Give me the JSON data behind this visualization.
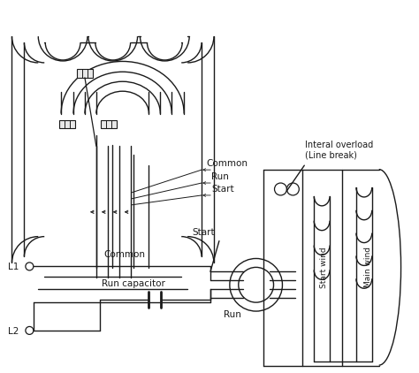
{
  "bg_color": "#ffffff",
  "line_color": "#1a1a1a",
  "fig_width": 4.74,
  "fig_height": 4.22,
  "dpi": 100,
  "labels": {
    "common": "Common",
    "run": "Run",
    "start": "Start",
    "l1": "L1",
    "l2": "L2",
    "run_cap": "Run capacitor",
    "overload": "Interal overload\n(Line break)",
    "start_wind": "Start wind",
    "main_wind": "Main wind",
    "start2": "Start",
    "common2": "Common",
    "run2": "Run"
  },
  "font_size": 7.5
}
